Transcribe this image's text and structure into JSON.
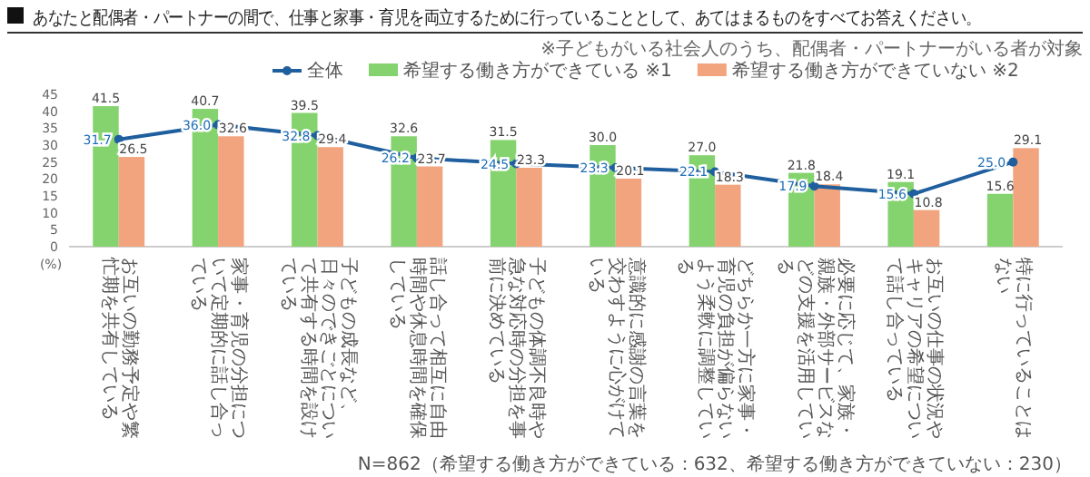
{
  "chart_data": {
    "type": "bar",
    "title": "あなたと配偶者・パートナーの間で、仕事と家事・育児を両立するために行っていることとして、あてはまるものをすべてお答えください。",
    "subtitle": "※子どもがいる社会人のうち、配偶者・パートナーがいる者が対象",
    "ylabel": "(%)",
    "categories": [
      "お互いの勤務予定や繁忙期を共有している",
      "家事・育児の分担について定期的に話し合っている",
      "子どもの成長など、日々のできごとについて共有する時間を設けている",
      "話し合って相互に自由時間や休息時間を確保している",
      "子どもの体調不良時や急な対応時の分担を事前に決めている",
      "意識的に感謝の言葉を交わすように心がけている",
      "どちらか一方に家事・育児の負担が偏らないよう柔軟に調整している",
      "必要に応じて、家族・親族・外部サービスなどの支援を活用している",
      "お互いの仕事の状況やキャリアの希望について話し合っている",
      "特に行っていることはない"
    ],
    "series": [
      {
        "name": "全体",
        "type": "line",
        "color": "#1f5f9e",
        "values": [
          31.7,
          36.0,
          32.8,
          26.2,
          24.5,
          23.3,
          22.1,
          17.9,
          15.6,
          25.0
        ],
        "value_labels": [
          "31.7",
          "36.0",
          "32.8",
          "26.2",
          "24.5",
          "23.3",
          "22.1",
          "17.9",
          "15.6",
          "25.0"
        ]
      },
      {
        "name": "希望する働き方ができている ※1",
        "color": "#84d36e",
        "values": [
          41.5,
          40.7,
          39.5,
          32.6,
          31.5,
          30.0,
          27.0,
          21.8,
          19.1,
          15.6
        ],
        "value_labels": [
          "41.5",
          "40.7",
          "39.5",
          "32.6",
          "31.5",
          "30.0",
          "27.0",
          "21.8",
          "19.1",
          "15.6"
        ]
      },
      {
        "name": "希望する働き方ができていない ※2",
        "color": "#f2a47e",
        "values": [
          26.5,
          32.6,
          29.4,
          23.7,
          23.3,
          20.1,
          18.3,
          18.4,
          10.8,
          29.1
        ],
        "value_labels": [
          "26.5",
          "32.6",
          "29.4",
          "23.7",
          "23.3",
          "20.1",
          "18.3",
          "18.4",
          "10.8",
          "29.1"
        ]
      }
    ],
    "ylim": [
      0,
      45
    ],
    "yticks": [
      0,
      5,
      10,
      15,
      20,
      25,
      30,
      35,
      40,
      45
    ],
    "legend": "top",
    "marker": "circle",
    "grid": false,
    "annotations": [
      "N=862（希望する働き方ができている：632、希望する働き方ができていない：230）"
    ]
  }
}
